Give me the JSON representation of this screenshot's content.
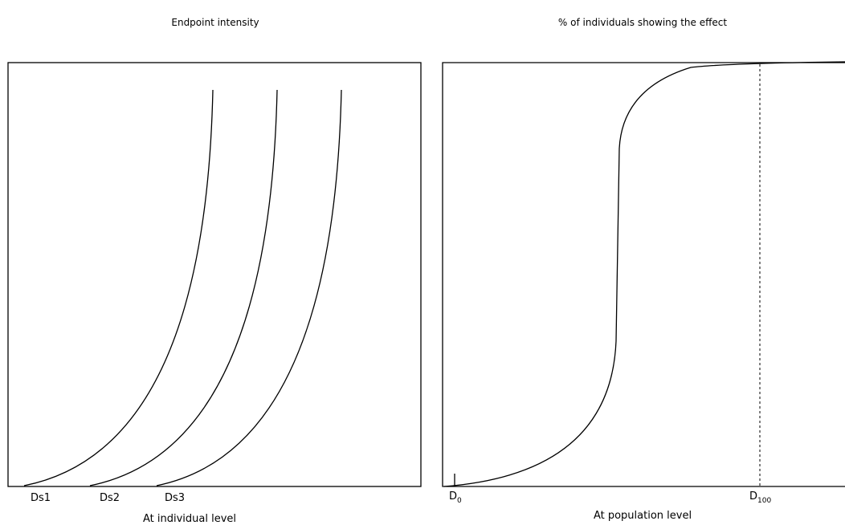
{
  "left_panel": {
    "title": "Endpoint intensity",
    "x_labels": [
      "Ds1",
      "Ds2",
      "Ds3"
    ],
    "caption": "At individual level"
  },
  "right_panel": {
    "title": "% of individuals showing the effect",
    "x_labels": [
      {
        "base": "D",
        "sub": "0"
      },
      {
        "base": "D",
        "sub": "100"
      }
    ],
    "caption": "At population level"
  }
}
